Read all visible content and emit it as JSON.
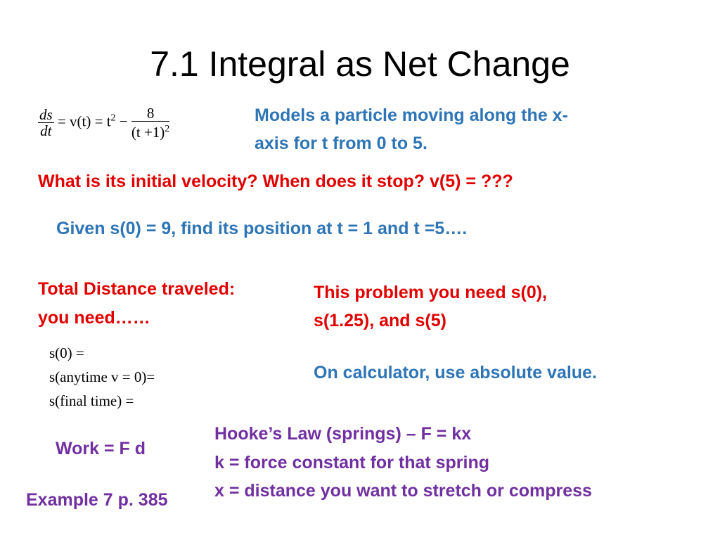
{
  "colors": {
    "blue": "#2e75b6",
    "red": "#e00000",
    "purple": "#7030a0"
  },
  "title": "7.1 Integral as Net Change",
  "equation": {
    "lhs_num": "ds",
    "lhs_den": "dt",
    "middle": "= v(t) = t",
    "exp": "2",
    "minus": "−",
    "frac_num": "8",
    "frac_den": "(t +1)",
    "frac_den_exp": "2"
  },
  "models_line1": "Models a particle moving along the x-",
  "models_line2": "axis for t from 0 to 5.",
  "questions": "What is its initial velocity?  When does it stop? v(5) = ???",
  "given": "Given s(0) = 9, find its position at t = 1 and t =5….",
  "total_line1": "Total Distance traveled:",
  "total_line2": "you need……",
  "problem_line1": "This problem you need s(0),",
  "problem_line2": "s(1.25), and s(5)",
  "s_lines": [
    "s(0) =",
    "s(anytime v = 0)=",
    "s(final time) ="
  ],
  "calculator": "On calculator, use absolute value.",
  "work": "Work = F d",
  "hooke": [
    "Hooke’s Law (springs) – F = kx",
    "k = force constant for that spring",
    "x = distance you want to stretch or compress"
  ],
  "example": "Example 7 p. 385"
}
